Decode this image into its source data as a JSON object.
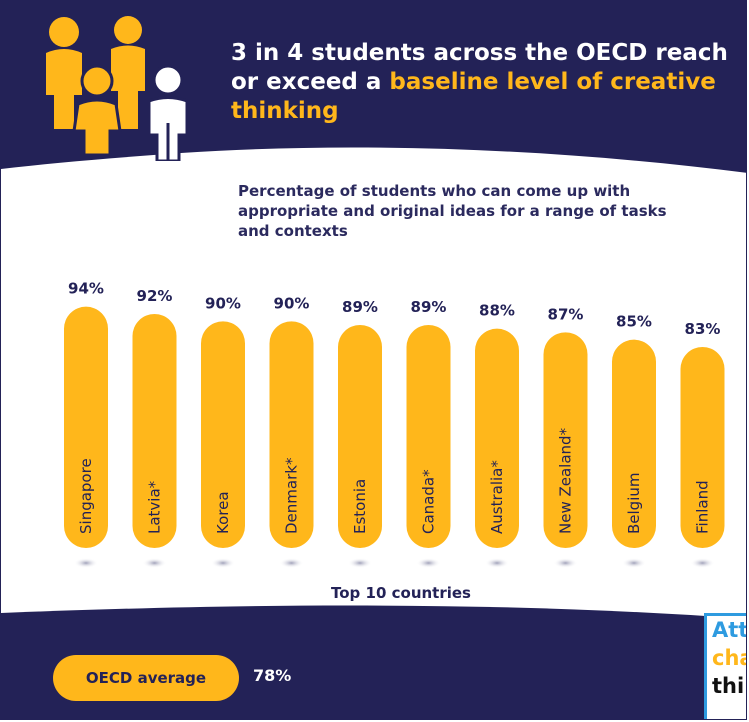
{
  "header": {
    "title_part1": "3 in 4 students across the OECD reach or exceed a ",
    "title_highlight": "baseline level of creative thinking"
  },
  "subtitle": "Percentage of students who can come up with appropriate and original ideas for a range of tasks and contexts",
  "section_title": "Top 10 countries",
  "oecd": {
    "label": "OECD average",
    "value": "78%"
  },
  "callout": {
    "line1": "Att",
    "line2": "cha",
    "line3": "thi"
  },
  "colors": {
    "navy": "#232257",
    "accent_yellow": "#ffb71b",
    "figure_white": "#ffffff",
    "shadow": "#c5c6d3",
    "callout_blue": "#2e9be0"
  },
  "icons": [
    "people-group-icon"
  ],
  "chart_data": {
    "type": "bar",
    "orientation": "vertical",
    "categories": [
      "Singapore",
      "Latvia*",
      "Korea",
      "Denmark*",
      "Estonia",
      "Canada*",
      "Australia*",
      "New Zealand*",
      "Belgium",
      "Finland"
    ],
    "values": [
      94,
      92,
      90,
      90,
      89,
      89,
      88,
      87,
      85,
      83
    ],
    "value_labels": [
      "94%",
      "92%",
      "90%",
      "90%",
      "89%",
      "89%",
      "88%",
      "87%",
      "85%",
      "83%"
    ],
    "unit": "%",
    "title": "Top 10 countries",
    "reference": {
      "label": "OECD average",
      "value": 78
    },
    "grid": false,
    "legend": "none"
  }
}
